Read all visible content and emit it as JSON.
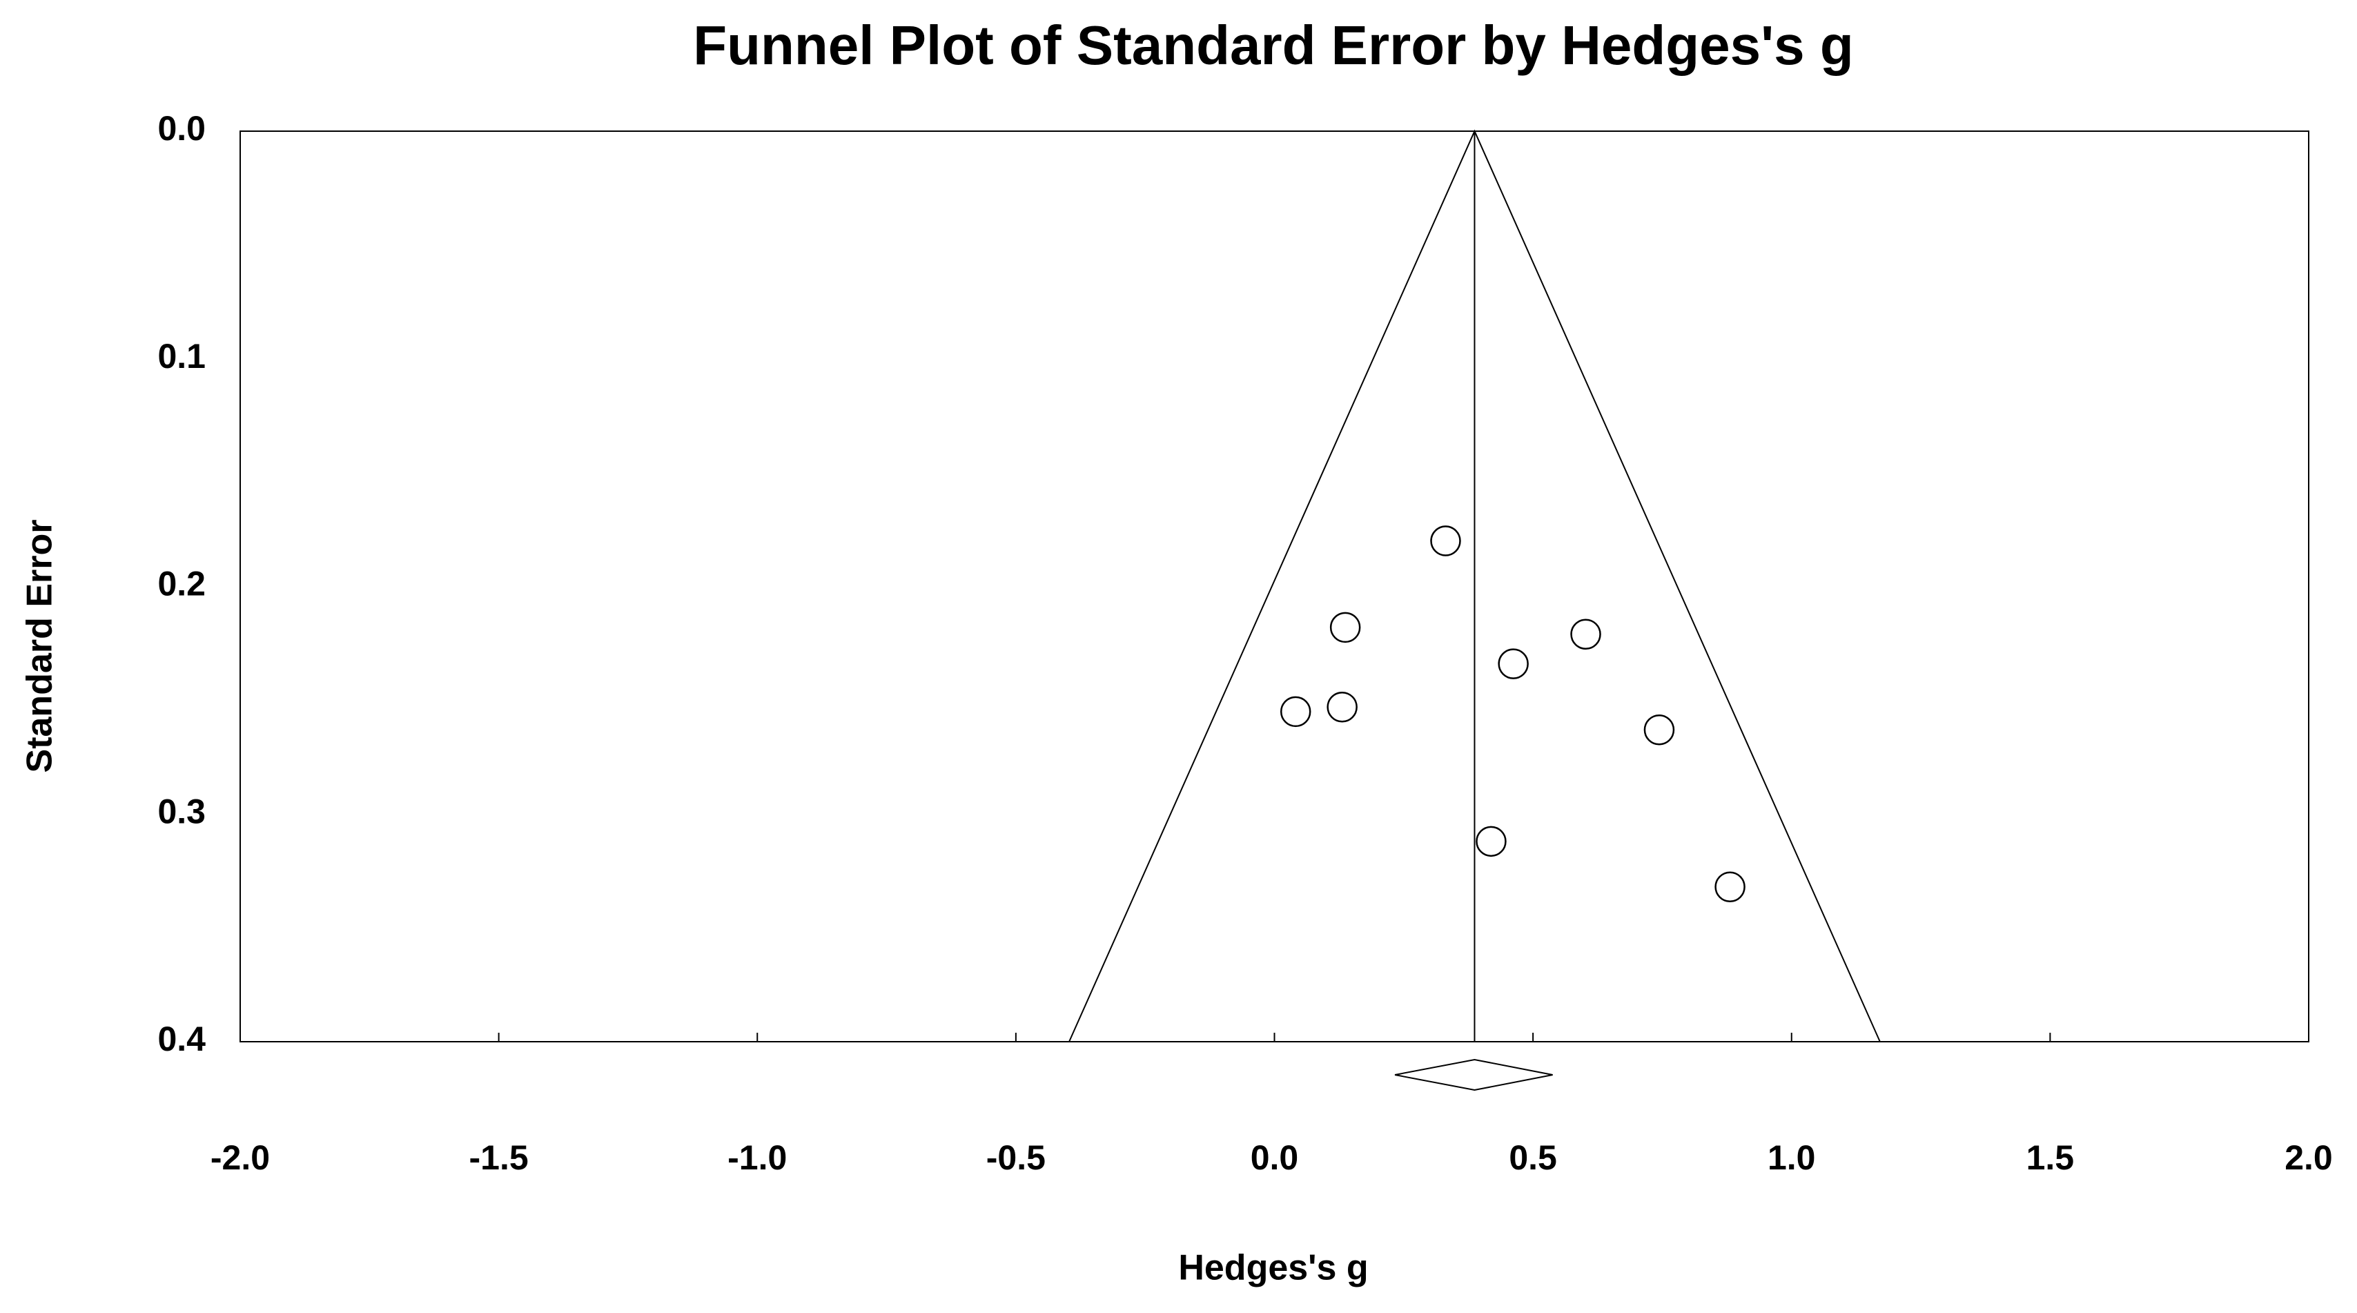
{
  "chart_data": {
    "type": "funnel",
    "title": "Funnel Plot of Standard Error by Hedges's g",
    "x_label": "Hedges's g",
    "y_label": "Standard Error",
    "x": [
      0.331,
      0.137,
      0.602,
      0.462,
      0.041,
      0.131,
      0.744,
      0.419,
      0.881
    ],
    "values": [
      0.18,
      0.218,
      0.221,
      0.234,
      0.255,
      0.253,
      0.263,
      0.312,
      0.332
    ],
    "summary": {
      "estimate": 0.387,
      "ci": [
        0.233,
        0.538
      ]
    },
    "xlim": [
      -2,
      2
    ],
    "ylim": [
      0,
      0.4
    ],
    "y_inverted": true,
    "xticks": [
      {
        "value": -2,
        "label": "-2.0"
      },
      -1.5,
      {
        "value": -1,
        "label": "-1.0"
      },
      -0.5,
      {
        "value": 0,
        "label": "0.0"
      },
      0.5,
      {
        "value": 1,
        "label": "1.0"
      },
      1.5,
      {
        "value": 2,
        "label": "2.0"
      }
    ],
    "yticks": [
      {
        "value": 0,
        "label": "0.0"
      },
      0.1,
      0.2,
      0.3,
      {
        "value": 0.4,
        "label": "0.4"
      }
    ],
    "color": "#000000"
  }
}
